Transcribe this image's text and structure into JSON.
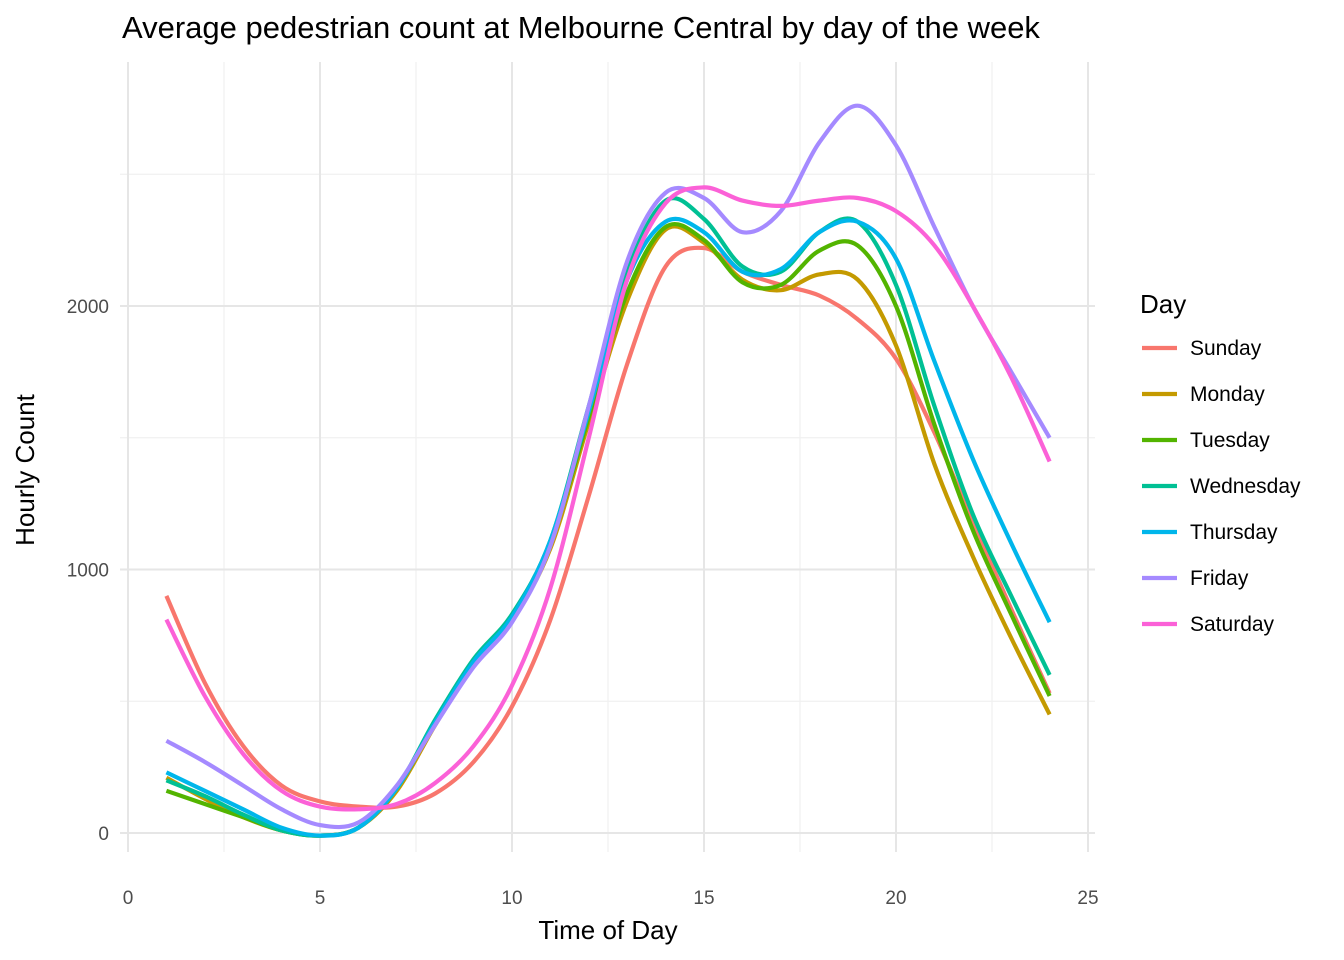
{
  "chart_data": {
    "type": "line",
    "title": "Average pedestrian count at Melbourne Central by day of the week",
    "xlabel": "Time of Day",
    "ylabel": "Hourly Count",
    "xlim": [
      0,
      25
    ],
    "ylim": [
      -150,
      2800
    ],
    "x_ticks": [
      0,
      5,
      10,
      15,
      20,
      25
    ],
    "x_tick_labels": [
      "0",
      "5",
      "10",
      "15",
      "20",
      "25"
    ],
    "y_ticks": [
      0,
      1000,
      2000
    ],
    "y_tick_labels": [
      "0",
      "1000",
      "2000"
    ],
    "grid": true,
    "legend": {
      "title": "Day",
      "position": "right"
    },
    "series": [
      {
        "name": "Sunday",
        "color": "#F8766D",
        "x": [
          1,
          2,
          3,
          4,
          5,
          6,
          7,
          8,
          9,
          10,
          11,
          12,
          13,
          14,
          15,
          16,
          17,
          18,
          19,
          20,
          21,
          22,
          23,
          24
        ],
        "y": [
          900,
          570,
          330,
          180,
          120,
          100,
          100,
          150,
          270,
          480,
          810,
          1280,
          1780,
          2150,
          2220,
          2130,
          2080,
          2040,
          1950,
          1800,
          1520,
          1180,
          850,
          530
        ]
      },
      {
        "name": "Monday",
        "color": "#C49A00",
        "x": [
          1,
          2,
          3,
          4,
          5,
          6,
          7,
          8,
          9,
          10,
          11,
          12,
          13,
          14,
          15,
          16,
          17,
          18,
          19,
          20,
          21,
          22,
          23,
          24
        ],
        "y": [
          210,
          130,
          60,
          10,
          -10,
          20,
          160,
          410,
          640,
          810,
          1080,
          1560,
          2020,
          2290,
          2240,
          2100,
          2060,
          2120,
          2100,
          1850,
          1400,
          1050,
          740,
          450
        ]
      },
      {
        "name": "Tuesday",
        "color": "#53B400",
        "x": [
          1,
          2,
          3,
          4,
          5,
          6,
          7,
          8,
          9,
          10,
          11,
          12,
          13,
          14,
          15,
          16,
          17,
          18,
          19,
          20,
          21,
          22,
          23,
          24
        ],
        "y": [
          160,
          110,
          60,
          10,
          -10,
          20,
          170,
          420,
          650,
          820,
          1100,
          1580,
          2050,
          2300,
          2250,
          2090,
          2080,
          2210,
          2230,
          2000,
          1550,
          1150,
          830,
          520
        ]
      },
      {
        "name": "Wednesday",
        "color": "#00C094",
        "x": [
          1,
          2,
          3,
          4,
          5,
          6,
          7,
          8,
          9,
          10,
          11,
          12,
          13,
          14,
          15,
          16,
          17,
          18,
          19,
          20,
          21,
          22,
          23,
          24
        ],
        "y": [
          200,
          140,
          70,
          10,
          -10,
          20,
          170,
          430,
          660,
          830,
          1110,
          1620,
          2130,
          2400,
          2330,
          2150,
          2130,
          2280,
          2320,
          2080,
          1620,
          1210,
          900,
          600
        ]
      },
      {
        "name": "Thursday",
        "color": "#00B6EB",
        "x": [
          1,
          2,
          3,
          4,
          5,
          6,
          7,
          8,
          9,
          10,
          11,
          12,
          13,
          14,
          15,
          16,
          17,
          18,
          19,
          20,
          21,
          22,
          23,
          24
        ],
        "y": [
          230,
          160,
          90,
          20,
          -10,
          20,
          170,
          420,
          650,
          820,
          1110,
          1600,
          2100,
          2320,
          2280,
          2130,
          2140,
          2280,
          2320,
          2180,
          1790,
          1420,
          1100,
          800
        ]
      },
      {
        "name": "Friday",
        "color": "#A58AFF",
        "x": [
          1,
          2,
          3,
          4,
          5,
          6,
          7,
          8,
          9,
          10,
          11,
          12,
          13,
          14,
          15,
          16,
          17,
          18,
          19,
          20,
          21,
          22,
          23,
          24
        ],
        "y": [
          350,
          270,
          180,
          90,
          30,
          40,
          180,
          410,
          630,
          800,
          1090,
          1620,
          2170,
          2430,
          2410,
          2280,
          2360,
          2620,
          2760,
          2610,
          2300,
          2000,
          1750,
          1500
        ]
      },
      {
        "name": "Saturday",
        "color": "#FB61D7",
        "x": [
          1,
          2,
          3,
          4,
          5,
          6,
          7,
          8,
          9,
          10,
          11,
          12,
          13,
          14,
          15,
          16,
          17,
          18,
          19,
          20,
          21,
          22,
          23,
          24
        ],
        "y": [
          810,
          520,
          300,
          160,
          100,
          90,
          110,
          190,
          330,
          560,
          930,
          1500,
          2100,
          2390,
          2450,
          2400,
          2380,
          2400,
          2410,
          2360,
          2230,
          2000,
          1730,
          1410
        ]
      }
    ]
  }
}
